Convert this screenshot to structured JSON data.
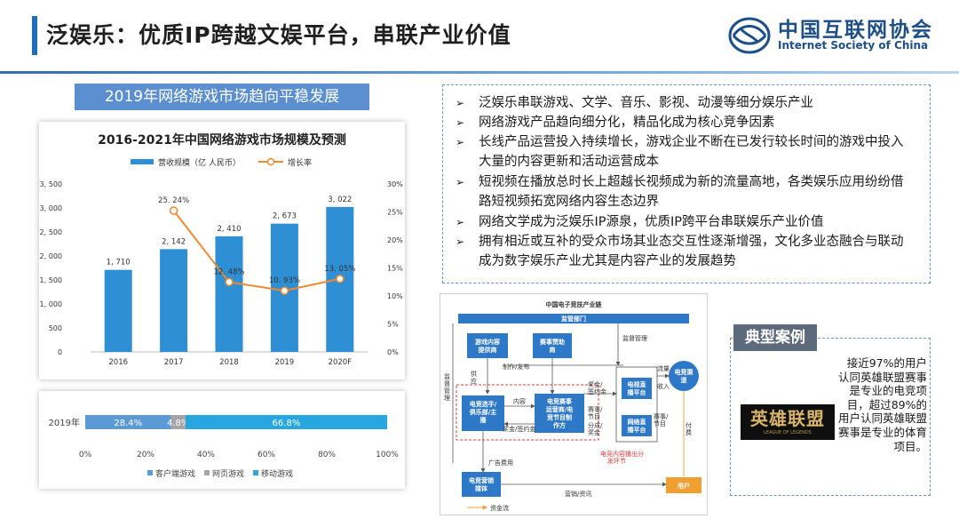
{
  "header": {
    "title": "泛娱乐：优质IP跨越文娱平台，串联产业价值",
    "org_name_cn": "中国互联网协会",
    "org_name_en": "Internet Society of China"
  },
  "left": {
    "section_title": "2019年网络游戏市场趋向平稳发展"
  },
  "chart_data": [
    {
      "type": "bar",
      "title": "2016-2021年中国网络游戏市场规模及预测",
      "categories": [
        "2016",
        "2017",
        "2018",
        "2019",
        "2020F"
      ],
      "series": [
        {
          "name": "营收规模（亿 人民币）",
          "type": "bar",
          "axis": "left",
          "color": "#2e8fd4",
          "values": [
            1710,
            2142,
            2410,
            2673,
            3022
          ],
          "labels": [
            "1, 710",
            "2, 142",
            "2, 410",
            "2, 673",
            "3, 022"
          ]
        },
        {
          "name": "增长率",
          "type": "line",
          "axis": "right",
          "color": "#ef8a2f",
          "values": [
            null,
            25.24,
            12.48,
            10.93,
            13.05
          ],
          "labels": [
            "",
            "25. 24%",
            "12. 48%",
            "10. 93%",
            "13. 05%"
          ]
        }
      ],
      "y_left": {
        "min": 0,
        "max": 3500,
        "ticks": [
          "0",
          "500",
          "1, 000",
          "1, 500",
          "2, 000",
          "2, 500",
          "3, 000",
          "3, 500"
        ]
      },
      "y_right": {
        "min": 0,
        "max": 30,
        "ticks": [
          "0%",
          "5%",
          "10%",
          "15%",
          "20%",
          "25%",
          "30%"
        ]
      },
      "grid": false,
      "legend": "top"
    },
    {
      "type": "bar",
      "stacked": true,
      "orientation": "horizontal",
      "categories": [
        "2019年"
      ],
      "series": [
        {
          "name": "客户端游戏",
          "color": "#5b9bd5",
          "values": [
            28.4
          ],
          "label": "28.4%"
        },
        {
          "name": "网页游戏",
          "color": "#a5a5a5",
          "values": [
            4.8
          ],
          "label": "4.8%"
        },
        {
          "name": "移动游戏",
          "color": "#27a6e0",
          "values": [
            66.8
          ],
          "label": "66.8%"
        }
      ],
      "xlim": [
        0,
        100
      ],
      "x_ticks": [
        "0%",
        "20%",
        "40%",
        "60%",
        "80%",
        "100%"
      ],
      "legend": "bottom"
    }
  ],
  "bullets": [
    "泛娱乐串联游戏、文学、音乐、影视、动漫等细分娱乐产业",
    "网络游戏产品趋向细分化，精品化成为核心竞争因素",
    "长线产品运营投入持续增长，游戏企业不断在已发行较长时间的游戏中投入大量的内容更新和活动运营成本",
    "短视频在播放总时长上超越长视频成为新的流量高地，各类娱乐应用纷纷借路短视频拓宽网络内容生态边界",
    "网络文学成为泛娱乐IP源泉，优质IP跨平台串联娱乐产业价值",
    "拥有相近或互补的受众市场其业态交互性逐渐增强，文化多业态融合与联动成为数字娱乐产业尤其是内容产业的发展趋势"
  ],
  "diagram": {
    "title": "中国电子竞技产业链",
    "nodes": {
      "regulator": "监管部门",
      "content_provider": "游戏内容提供商",
      "sponsor": "赛事赞助商",
      "player_club": "电竞选手/俱乐部/主播",
      "event_operator": "电竞赛事运营商/电竞节目制作方",
      "tv_platform": "电视直播平台",
      "web_platform": "网络直播平台",
      "channel": "电竞渠道",
      "marketing_media": "电竞营销媒体",
      "user": "用户"
    },
    "edge_labels": {
      "supervision": "监督管理",
      "supervision_left": "监督管理",
      "supply": "供应",
      "production": "制作/发布",
      "content": "内容",
      "prize": "奖金/签约金",
      "prize2": "奖金/签约金",
      "bonus_in": "奖金/签约金",
      "events_programs": "赛事/节目",
      "share_revenue": "分成/奖金",
      "events2": "赛事/节目",
      "traffic": "流量",
      "income": "收入",
      "payment": "付费",
      "ad_cost": "广告费用",
      "marketing": "营销/资讯",
      "content_spread": "电竞内容播出分发环节",
      "funds": "资金流"
    }
  },
  "case": {
    "label": "典型案例",
    "logo_text": "英雄联盟",
    "logo_sub": "LEAGUE OF LEGENDS",
    "description": "接近97%的用户认同英雄联盟赛事是专业的电竞项目，超过89%的用户认同英雄联盟赛事是专业的体育项目。"
  }
}
